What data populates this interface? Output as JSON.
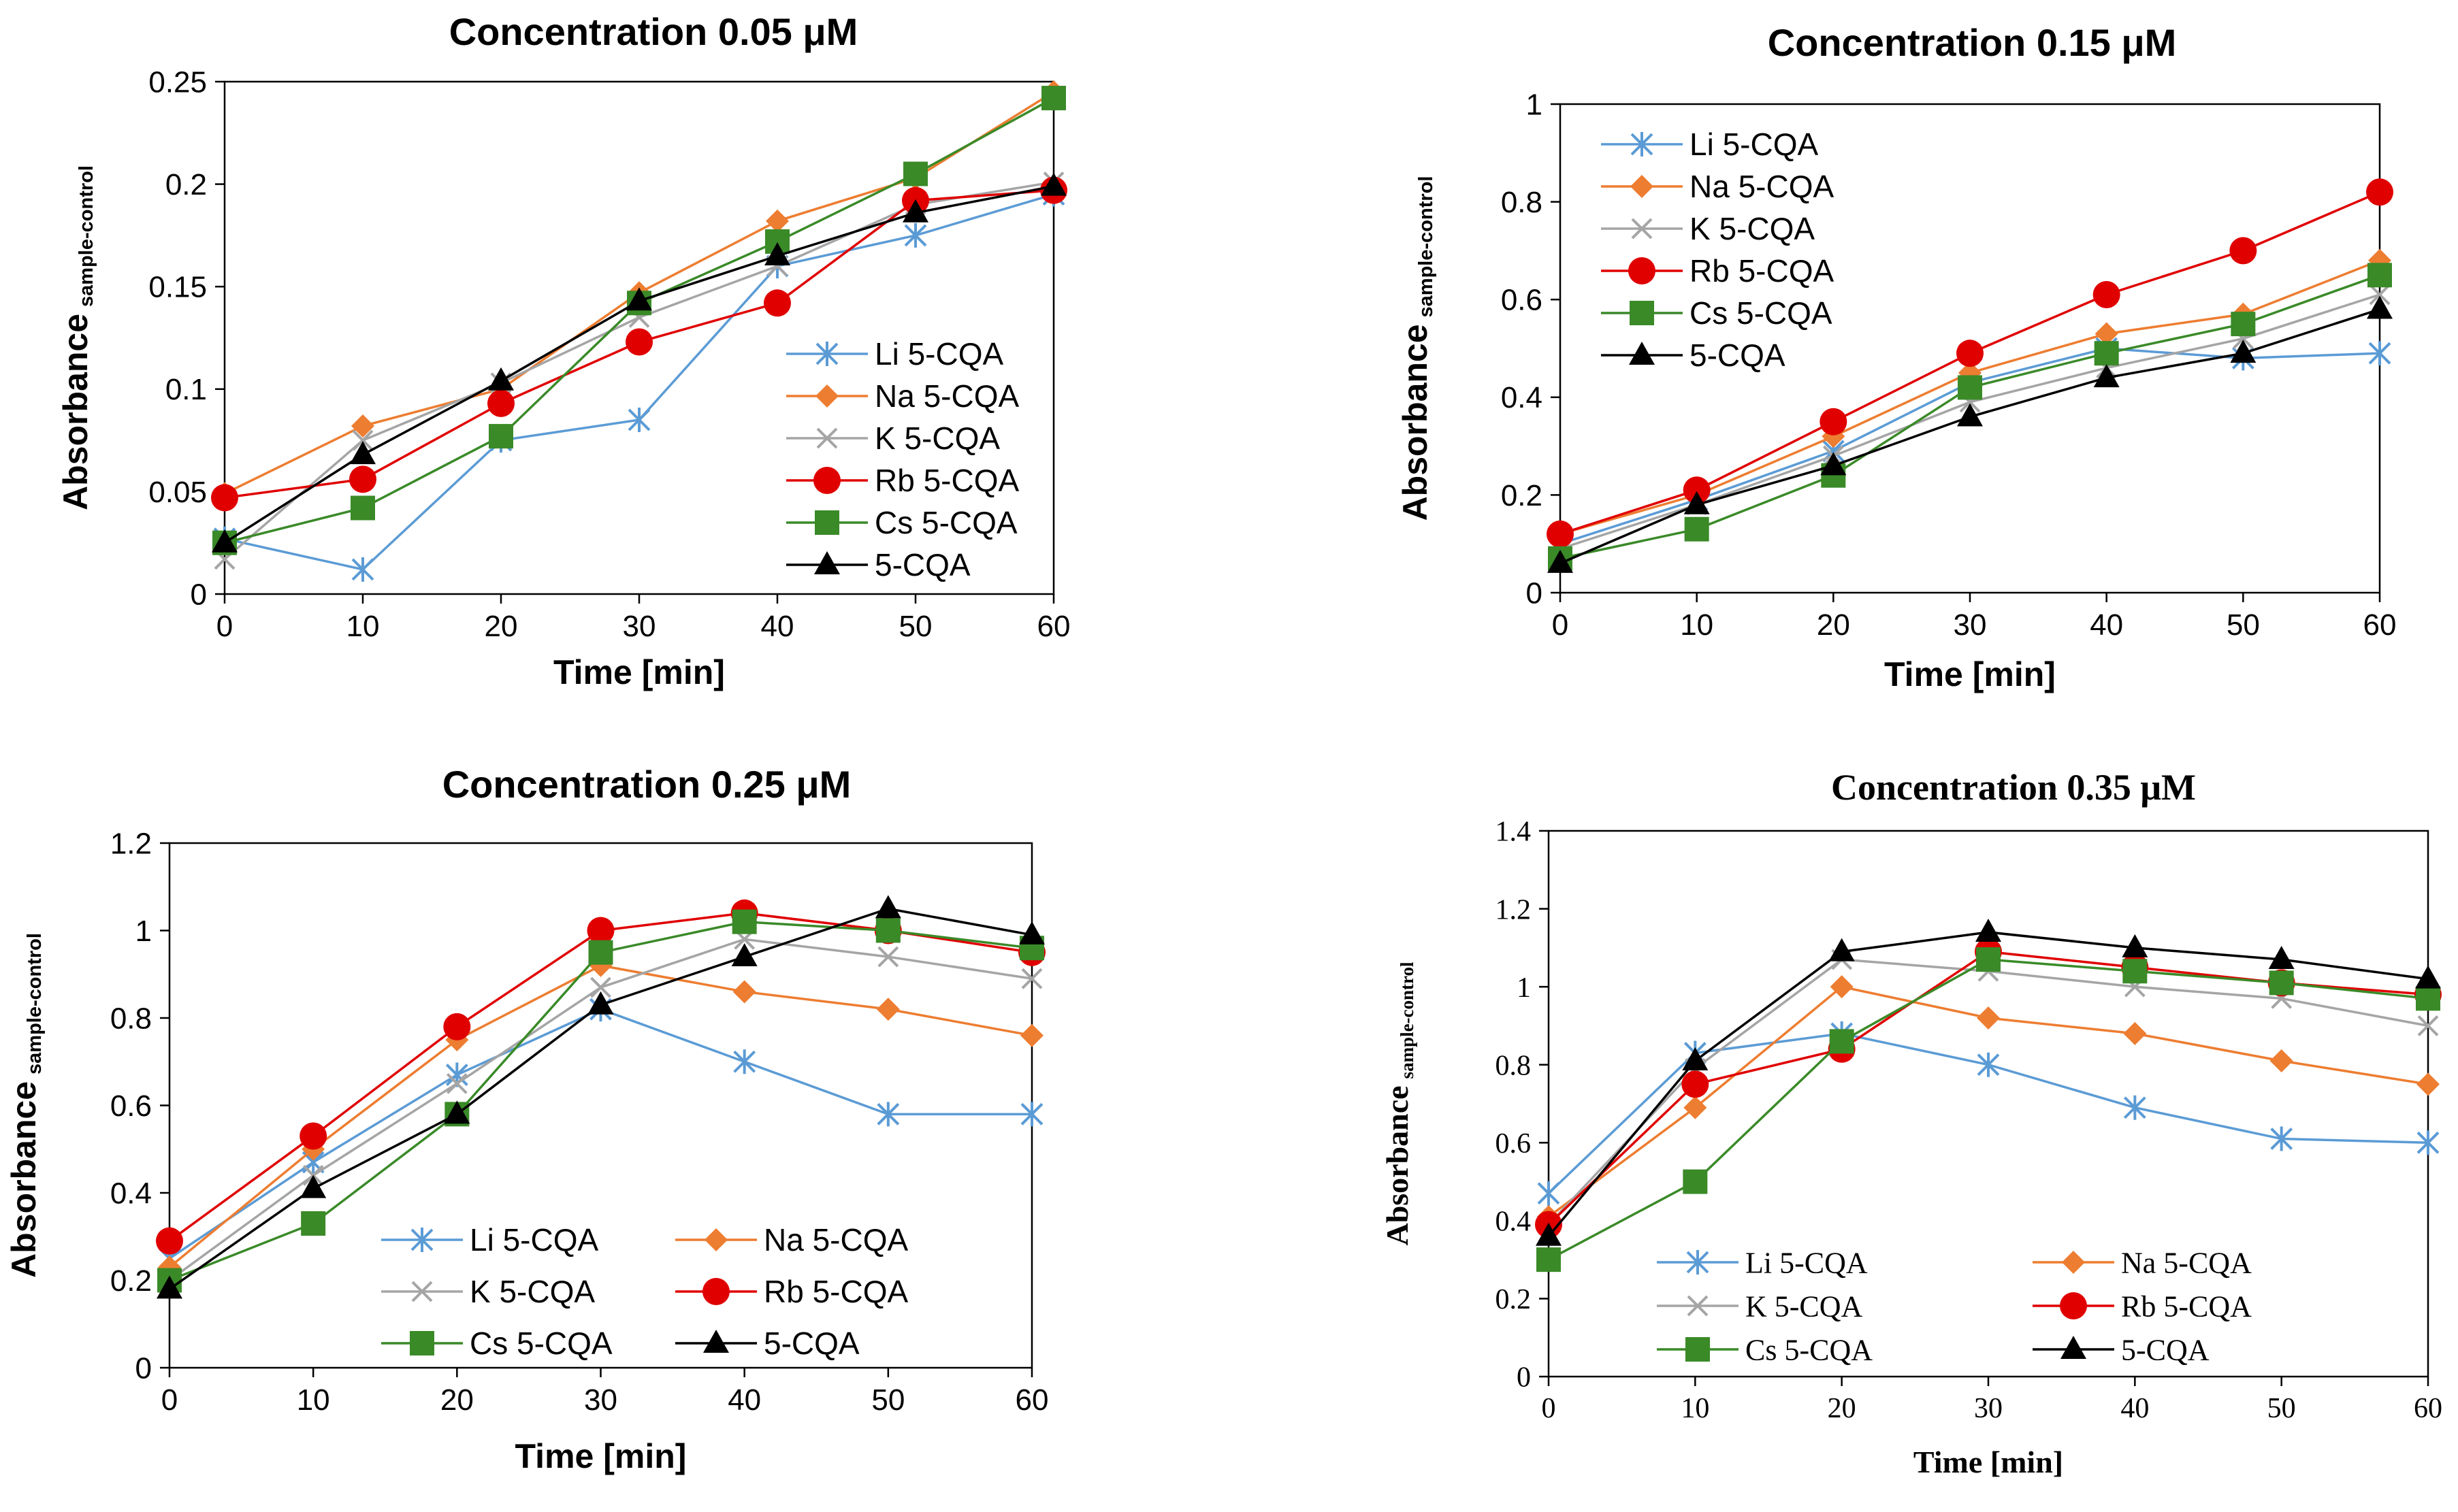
{
  "colors": {
    "li": "#5B9BD5",
    "na": "#ED7D31",
    "k": "#A5A5A5",
    "rb": "#E00000",
    "cs": "#3A8A28",
    "cqa": "#000000",
    "axis": "#000000"
  },
  "chart_data": [
    {
      "type": "line",
      "title": "Concentration 0.05 μM",
      "xlabel": "Time [min]",
      "ylabel": "Absorbance",
      "ylabel_sub": "sample-control",
      "x": [
        0,
        10,
        20,
        30,
        40,
        50,
        60
      ],
      "xlim": [
        0,
        60
      ],
      "ylim": [
        0,
        0.25
      ],
      "yticks": [
        0,
        0.05,
        0.1,
        0.15,
        0.2,
        0.25
      ],
      "ytick_labels": [
        "0",
        "0.05",
        "0.1",
        "0.15",
        "0.2",
        "0.25"
      ],
      "xticks": [
        0,
        10,
        20,
        30,
        40,
        50,
        60
      ],
      "xtick_labels": [
        "0",
        "10",
        "20",
        "30",
        "40",
        "50",
        "60"
      ],
      "legend_position": "bottom-right",
      "legend_columns": 1,
      "series": [
        {
          "name": "Li 5-CQA",
          "key": "li",
          "marker": "star",
          "values": [
            0.027,
            0.012,
            0.075,
            0.085,
            0.16,
            0.175,
            0.195
          ]
        },
        {
          "name": "Na 5-CQA",
          "key": "na",
          "marker": "diamond",
          "values": [
            0.049,
            0.082,
            0.1,
            0.147,
            0.182,
            0.203,
            0.245
          ]
        },
        {
          "name": "K 5-CQA",
          "key": "k",
          "marker": "x",
          "values": [
            0.017,
            0.075,
            0.103,
            0.135,
            0.16,
            0.19,
            0.201
          ]
        },
        {
          "name": "Rb 5-CQA",
          "key": "rb",
          "marker": "circle",
          "values": [
            0.047,
            0.056,
            0.093,
            0.123,
            0.142,
            0.192,
            0.197
          ]
        },
        {
          "name": "Cs 5-CQA",
          "key": "cs",
          "marker": "square",
          "values": [
            0.025,
            0.042,
            0.077,
            0.142,
            0.172,
            0.205,
            0.242
          ]
        },
        {
          "name": "5-CQA",
          "key": "cqa",
          "marker": "triangle",
          "values": [
            0.025,
            0.068,
            0.104,
            0.143,
            0.165,
            0.186,
            0.199
          ]
        }
      ]
    },
    {
      "type": "line",
      "title": "Concentration 0.15 μM",
      "xlabel": "Time [min]",
      "ylabel": "Absorbance",
      "ylabel_sub": "sample-control",
      "x": [
        0,
        10,
        20,
        30,
        40,
        50,
        60
      ],
      "xlim": [
        0,
        60
      ],
      "ylim": [
        0,
        1
      ],
      "yticks": [
        0,
        0.2,
        0.4,
        0.6,
        0.8,
        1
      ],
      "ytick_labels": [
        "0",
        "0.2",
        "0.4",
        "0.6",
        "0.8",
        "1"
      ],
      "xticks": [
        0,
        10,
        20,
        30,
        40,
        50,
        60
      ],
      "xtick_labels": [
        "0",
        "10",
        "20",
        "30",
        "40",
        "50",
        "60"
      ],
      "legend_position": "top-left",
      "legend_columns": 1,
      "series": [
        {
          "name": "Li 5-CQA",
          "key": "li",
          "marker": "star",
          "values": [
            0.1,
            0.19,
            0.29,
            0.43,
            0.5,
            0.48,
            0.49
          ]
        },
        {
          "name": "Na 5-CQA",
          "key": "na",
          "marker": "diamond",
          "values": [
            0.12,
            0.2,
            0.32,
            0.45,
            0.53,
            0.57,
            0.68
          ]
        },
        {
          "name": "K 5-CQA",
          "key": "k",
          "marker": "x",
          "values": [
            0.09,
            0.18,
            0.28,
            0.39,
            0.46,
            0.52,
            0.61
          ]
        },
        {
          "name": "Rb 5-CQA",
          "key": "rb",
          "marker": "circle",
          "values": [
            0.12,
            0.21,
            0.35,
            0.49,
            0.61,
            0.7,
            0.82
          ]
        },
        {
          "name": "Cs 5-CQA",
          "key": "cs",
          "marker": "square",
          "values": [
            0.07,
            0.13,
            0.24,
            0.42,
            0.49,
            0.55,
            0.65
          ]
        },
        {
          "name": "5-CQA",
          "key": "cqa",
          "marker": "triangle",
          "values": [
            0.06,
            0.18,
            0.26,
            0.36,
            0.44,
            0.49,
            0.58
          ]
        }
      ]
    },
    {
      "type": "line",
      "title": "Concentration 0.25 μM",
      "xlabel": "Time [min]",
      "ylabel": "Absorbance",
      "ylabel_sub": "sample-control",
      "x": [
        0,
        10,
        20,
        30,
        40,
        50,
        60
      ],
      "xlim": [
        0,
        60
      ],
      "ylim": [
        0,
        1.2
      ],
      "yticks": [
        0,
        0.2,
        0.4,
        0.6,
        0.8,
        1,
        1.2
      ],
      "ytick_labels": [
        "0",
        "0.2",
        "0.4",
        "0.6",
        "0.8",
        "1",
        "1.2"
      ],
      "xticks": [
        0,
        10,
        20,
        30,
        40,
        50,
        60
      ],
      "xtick_labels": [
        "0",
        "10",
        "20",
        "30",
        "40",
        "50",
        "60"
      ],
      "legend_position": "bottom-right",
      "legend_columns": 2,
      "series": [
        {
          "name": "Li 5-CQA",
          "key": "li",
          "marker": "star",
          "values": [
            0.25,
            0.47,
            0.67,
            0.82,
            0.7,
            0.58,
            0.58
          ]
        },
        {
          "name": "Na 5-CQA",
          "key": "na",
          "marker": "diamond",
          "values": [
            0.23,
            0.5,
            0.75,
            0.92,
            0.86,
            0.82,
            0.76
          ]
        },
        {
          "name": "K 5-CQA",
          "key": "k",
          "marker": "x",
          "values": [
            0.2,
            0.44,
            0.65,
            0.87,
            0.98,
            0.94,
            0.89
          ]
        },
        {
          "name": "Rb 5-CQA",
          "key": "rb",
          "marker": "circle",
          "values": [
            0.29,
            0.53,
            0.78,
            1.0,
            1.04,
            1.0,
            0.95
          ]
        },
        {
          "name": "Cs 5-CQA",
          "key": "cs",
          "marker": "square",
          "values": [
            0.2,
            0.33,
            0.58,
            0.95,
            1.02,
            1.0,
            0.96
          ]
        },
        {
          "name": "5-CQA",
          "key": "cqa",
          "marker": "triangle",
          "values": [
            0.18,
            0.41,
            0.58,
            0.83,
            0.94,
            1.05,
            0.99
          ]
        }
      ]
    },
    {
      "type": "line",
      "title": "Concentration 0.35 μM",
      "xlabel": "Time [min]",
      "ylabel": "Absorbance",
      "ylabel_sub": "sample-control",
      "x": [
        0,
        10,
        20,
        30,
        40,
        50,
        60
      ],
      "xlim": [
        0,
        60
      ],
      "ylim": [
        0,
        1.4
      ],
      "yticks": [
        0,
        0.2,
        0.4,
        0.6,
        0.8,
        1,
        1.2,
        1.4
      ],
      "ytick_labels": [
        "0",
        "0.2",
        "0.4",
        "0.6",
        "0.8",
        "1",
        "1.2",
        "1.4"
      ],
      "xticks": [
        0,
        10,
        20,
        30,
        40,
        50,
        60
      ],
      "xtick_labels": [
        "0",
        "10",
        "20",
        "30",
        "40",
        "50",
        "60"
      ],
      "legend_position": "bottom-right",
      "legend_columns": 2,
      "series": [
        {
          "name": "Li 5-CQA",
          "key": "li",
          "marker": "star",
          "values": [
            0.47,
            0.83,
            0.88,
            0.8,
            0.69,
            0.61,
            0.6
          ]
        },
        {
          "name": "Na 5-CQA",
          "key": "na",
          "marker": "diamond",
          "values": [
            0.41,
            0.69,
            1.0,
            0.92,
            0.88,
            0.81,
            0.75
          ]
        },
        {
          "name": "K 5-CQA",
          "key": "k",
          "marker": "x",
          "values": [
            0.39,
            0.79,
            1.07,
            1.04,
            1.0,
            0.97,
            0.9
          ]
        },
        {
          "name": "Rb 5-CQA",
          "key": "rb",
          "marker": "circle",
          "values": [
            0.39,
            0.75,
            0.84,
            1.09,
            1.05,
            1.01,
            0.98
          ]
        },
        {
          "name": "Cs 5-CQA",
          "key": "cs",
          "marker": "square",
          "values": [
            0.3,
            0.5,
            0.86,
            1.07,
            1.04,
            1.01,
            0.97
          ]
        },
        {
          "name": "5-CQA",
          "key": "cqa",
          "marker": "triangle",
          "values": [
            0.36,
            0.81,
            1.09,
            1.14,
            1.1,
            1.07,
            1.02
          ]
        }
      ]
    }
  ]
}
